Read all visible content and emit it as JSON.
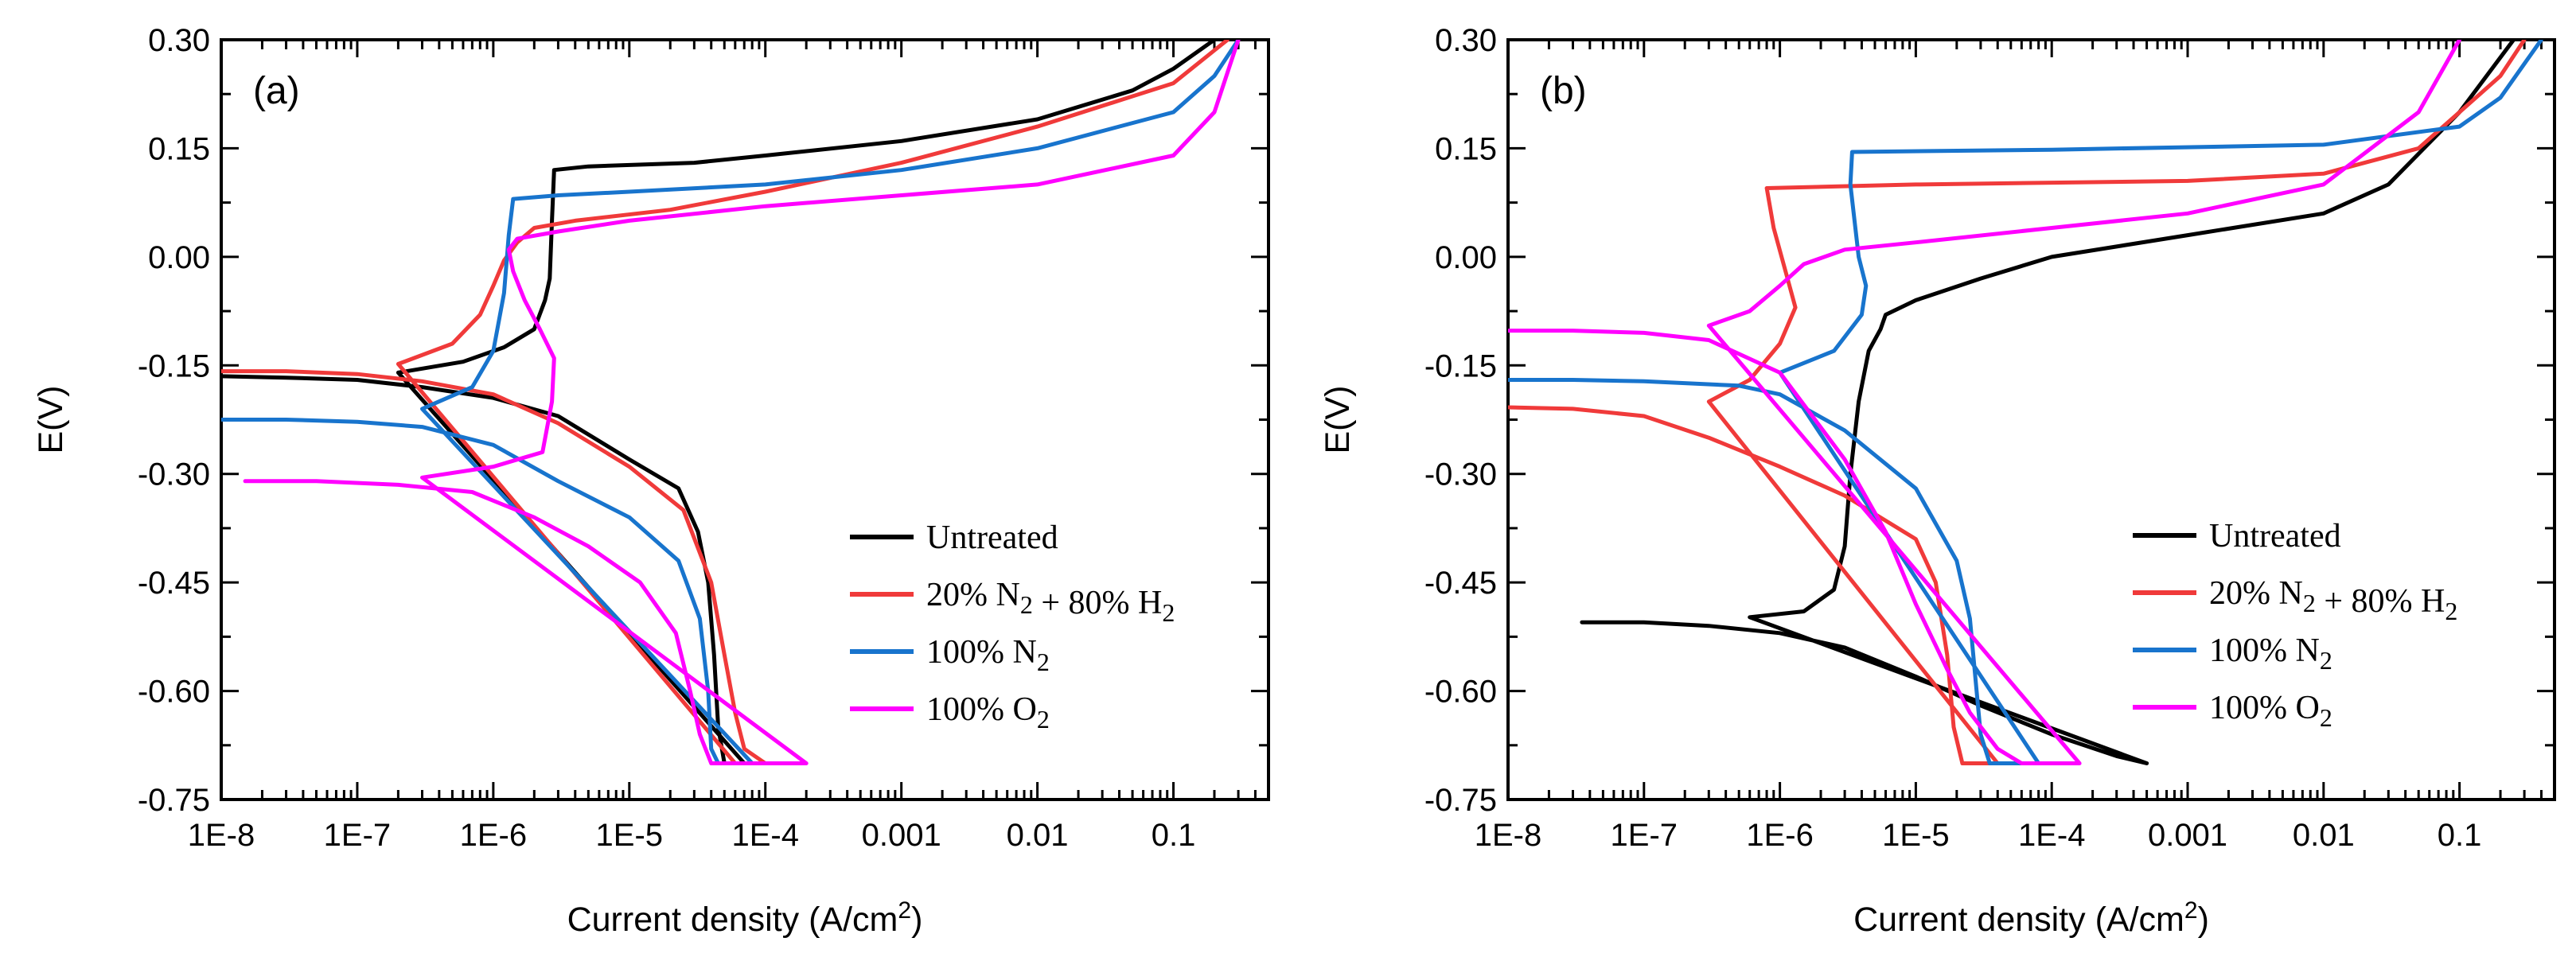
{
  "chart_data": [
    {
      "type": "line",
      "panel_label": "(a)",
      "xlabel": "Current density (A/cm",
      "xlabel_sup": "2",
      "xlabel_close": ")",
      "ylabel": "E(V)",
      "xscale": "log",
      "xlim": [
        1e-08,
        0.5
      ],
      "ylim": [
        -0.75,
        0.3
      ],
      "x_ticks": [
        1e-08,
        1e-07,
        1e-06,
        1e-05,
        0.0001,
        0.001,
        0.01,
        0.1
      ],
      "x_tick_labels": [
        "1E-8",
        "1E-7",
        "1E-6",
        "1E-5",
        "1E-4",
        "0.001",
        "0.01",
        "0.1"
      ],
      "y_ticks": [
        -0.75,
        -0.6,
        -0.45,
        -0.3,
        -0.15,
        0.0,
        0.15,
        0.3
      ],
      "y_tick_labels": [
        "-0.75",
        "-0.60",
        "-0.45",
        "-0.30",
        "-0.15",
        "0.00",
        "0.15",
        "0.30"
      ],
      "legend_position": "lower-right",
      "series": [
        {
          "name": "Untreated",
          "legend_parts": [
            [
              "Untreated",
              ""
            ]
          ],
          "color": "#000000",
          "points": [
            [
              1e-08,
              -0.165
            ],
            [
              3e-08,
              -0.167
            ],
            [
              1e-07,
              -0.17
            ],
            [
              3e-07,
              -0.18
            ],
            [
              1e-06,
              -0.195
            ],
            [
              3e-06,
              -0.22
            ],
            [
              1e-05,
              -0.28
            ],
            [
              2.3e-05,
              -0.32
            ],
            [
              3.2e-05,
              -0.38
            ],
            [
              3.8e-05,
              -0.45
            ],
            [
              4.2e-05,
              -0.55
            ],
            [
              4.5e-05,
              -0.65
            ],
            [
              5e-05,
              -0.7
            ],
            [
              7e-05,
              -0.7
            ],
            [
              2e-07,
              -0.16
            ],
            [
              6e-07,
              -0.145
            ],
            [
              1.2e-06,
              -0.125
            ],
            [
              2e-06,
              -0.1
            ],
            [
              2.4e-06,
              -0.06
            ],
            [
              2.6e-06,
              -0.03
            ],
            [
              2.7e-06,
              0.05
            ],
            [
              2.8e-06,
              0.12
            ],
            [
              5e-06,
              0.125
            ],
            [
              3e-05,
              0.13
            ],
            [
              0.0001,
              0.14
            ],
            [
              0.001,
              0.16
            ],
            [
              0.01,
              0.19
            ],
            [
              0.05,
              0.23
            ],
            [
              0.1,
              0.26
            ],
            [
              0.2,
              0.3
            ]
          ]
        },
        {
          "name": "20% N2 + 80% H2",
          "legend_parts": [
            [
              "20% N",
              "2"
            ],
            [
              " + 80% H",
              "2"
            ]
          ],
          "color": "#f03a3a",
          "points": [
            [
              1e-08,
              -0.158
            ],
            [
              3e-08,
              -0.158
            ],
            [
              1e-07,
              -0.162
            ],
            [
              3e-07,
              -0.172
            ],
            [
              1e-06,
              -0.19
            ],
            [
              3e-06,
              -0.23
            ],
            [
              1e-05,
              -0.29
            ],
            [
              2.5e-05,
              -0.35
            ],
            [
              4e-05,
              -0.45
            ],
            [
              5e-05,
              -0.55
            ],
            [
              6e-05,
              -0.63
            ],
            [
              7e-05,
              -0.68
            ],
            [
              0.0001,
              -0.7
            ],
            [
              6e-05,
              -0.7
            ],
            [
              2e-07,
              -0.148
            ],
            [
              5e-07,
              -0.12
            ],
            [
              8e-07,
              -0.08
            ],
            [
              1e-06,
              -0.04
            ],
            [
              1.2e-06,
              -0.005
            ],
            [
              1.5e-06,
              0.02
            ],
            [
              2e-06,
              0.04
            ],
            [
              4e-06,
              0.05
            ],
            [
              2e-05,
              0.065
            ],
            [
              0.0001,
              0.09
            ],
            [
              0.001,
              0.13
            ],
            [
              0.01,
              0.18
            ],
            [
              0.1,
              0.24
            ],
            [
              0.25,
              0.3
            ]
          ]
        },
        {
          "name": "100% N2",
          "legend_parts": [
            [
              "100% N",
              "2"
            ]
          ],
          "color": "#1874cd",
          "points": [
            [
              1e-08,
              -0.225
            ],
            [
              3e-08,
              -0.225
            ],
            [
              1e-07,
              -0.228
            ],
            [
              3e-07,
              -0.235
            ],
            [
              1e-06,
              -0.26
            ],
            [
              3e-06,
              -0.31
            ],
            [
              1e-05,
              -0.36
            ],
            [
              2.3e-05,
              -0.42
            ],
            [
              3.3e-05,
              -0.5
            ],
            [
              3.8e-05,
              -0.6
            ],
            [
              4e-05,
              -0.68
            ],
            [
              4.5e-05,
              -0.7
            ],
            [
              8e-05,
              -0.7
            ],
            [
              3e-07,
              -0.21
            ],
            [
              7e-07,
              -0.18
            ],
            [
              1e-06,
              -0.13
            ],
            [
              1.2e-06,
              -0.05
            ],
            [
              1.3e-06,
              0.03
            ],
            [
              1.4e-06,
              0.08
            ],
            [
              3e-06,
              0.085
            ],
            [
              1e-05,
              0.09
            ],
            [
              0.0001,
              0.1
            ],
            [
              0.001,
              0.12
            ],
            [
              0.01,
              0.15
            ],
            [
              0.1,
              0.2
            ],
            [
              0.2,
              0.25
            ],
            [
              0.3,
              0.3
            ]
          ]
        },
        {
          "name": "100% O2",
          "legend_parts": [
            [
              "100% O",
              "2"
            ]
          ],
          "color": "#ff00ff",
          "points": [
            [
              1.5e-08,
              -0.31
            ],
            [
              5e-08,
              -0.31
            ],
            [
              2e-07,
              -0.315
            ],
            [
              7e-07,
              -0.325
            ],
            [
              2e-06,
              -0.36
            ],
            [
              5e-06,
              -0.4
            ],
            [
              1.2e-05,
              -0.45
            ],
            [
              2.2e-05,
              -0.52
            ],
            [
              2.8e-05,
              -0.6
            ],
            [
              3.3e-05,
              -0.66
            ],
            [
              4e-05,
              -0.7
            ],
            [
              0.0002,
              -0.7
            ],
            [
              3e-07,
              -0.305
            ],
            [
              1e-06,
              -0.29
            ],
            [
              2.3e-06,
              -0.27
            ],
            [
              2.7e-06,
              -0.2
            ],
            [
              2.8e-06,
              -0.14
            ],
            [
              2.2e-06,
              -0.1
            ],
            [
              1.7e-06,
              -0.06
            ],
            [
              1.4e-06,
              -0.02
            ],
            [
              1.3e-06,
              0.01
            ],
            [
              1.5e-06,
              0.025
            ],
            [
              3e-06,
              0.035
            ],
            [
              1e-05,
              0.05
            ],
            [
              0.0001,
              0.07
            ],
            [
              0.001,
              0.085
            ],
            [
              0.01,
              0.1
            ],
            [
              0.1,
              0.14
            ],
            [
              0.2,
              0.2
            ],
            [
              0.3,
              0.3
            ]
          ]
        }
      ]
    },
    {
      "type": "line",
      "panel_label": "(b)",
      "xlabel": "Current density (A/cm",
      "xlabel_sup": "2",
      "xlabel_close": ")",
      "ylabel": "E(V)",
      "xscale": "log",
      "xlim": [
        1e-08,
        0.5
      ],
      "ylim": [
        -0.75,
        0.3
      ],
      "x_ticks": [
        1e-08,
        1e-07,
        1e-06,
        1e-05,
        0.0001,
        0.001,
        0.01,
        0.1
      ],
      "x_tick_labels": [
        "1E-8",
        "1E-7",
        "1E-6",
        "1E-5",
        "1E-4",
        "0.001",
        "0.01",
        "0.1"
      ],
      "y_ticks": [
        -0.75,
        -0.6,
        -0.45,
        -0.3,
        -0.15,
        0.0,
        0.15,
        0.3
      ],
      "y_tick_labels": [
        "-0.75",
        "-0.60",
        "-0.45",
        "-0.30",
        "-0.15",
        "0.00",
        "0.15",
        "0.30"
      ],
      "legend_position": "lower-right",
      "series": [
        {
          "name": "Untreated",
          "legend_parts": [
            [
              "Untreated",
              ""
            ]
          ],
          "color": "#000000",
          "points": [
            [
              3.5e-08,
              -0.505
            ],
            [
              1e-07,
              -0.505
            ],
            [
              3e-07,
              -0.51
            ],
            [
              1e-06,
              -0.52
            ],
            [
              3e-06,
              -0.54
            ],
            [
              1e-05,
              -0.58
            ],
            [
              3e-05,
              -0.62
            ],
            [
              0.0001,
              -0.66
            ],
            [
              0.0003,
              -0.69
            ],
            [
              0.0005,
              -0.7
            ],
            [
              6e-07,
              -0.498
            ],
            [
              1.5e-06,
              -0.49
            ],
            [
              2.5e-06,
              -0.46
            ],
            [
              3e-06,
              -0.4
            ],
            [
              3.3e-06,
              -0.3
            ],
            [
              3.8e-06,
              -0.2
            ],
            [
              4.5e-06,
              -0.13
            ],
            [
              5.5e-06,
              -0.1
            ],
            [
              6e-06,
              -0.08
            ],
            [
              1e-05,
              -0.06
            ],
            [
              3e-05,
              -0.03
            ],
            [
              0.0001,
              0.0
            ],
            [
              0.001,
              0.03
            ],
            [
              0.01,
              0.06
            ],
            [
              0.03,
              0.1
            ],
            [
              0.1,
              0.2
            ],
            [
              0.25,
              0.3
            ]
          ]
        },
        {
          "name": "20% N2 + 80% H2",
          "legend_parts": [
            [
              "20% N",
              "2"
            ],
            [
              " + 80% H",
              "2"
            ]
          ],
          "color": "#f03a3a",
          "points": [
            [
              1e-08,
              -0.208
            ],
            [
              3e-08,
              -0.21
            ],
            [
              1e-07,
              -0.22
            ],
            [
              3e-07,
              -0.25
            ],
            [
              1e-06,
              -0.29
            ],
            [
              3e-06,
              -0.33
            ],
            [
              1e-05,
              -0.39
            ],
            [
              1.4e-05,
              -0.45
            ],
            [
              1.7e-05,
              -0.55
            ],
            [
              1.9e-05,
              -0.65
            ],
            [
              2.2e-05,
              -0.7
            ],
            [
              4e-05,
              -0.7
            ],
            [
              3e-07,
              -0.2
            ],
            [
              6e-07,
              -0.17
            ],
            [
              1e-06,
              -0.12
            ],
            [
              1.3e-06,
              -0.07
            ],
            [
              1.1e-06,
              -0.02
            ],
            [
              9e-07,
              0.04
            ],
            [
              8e-07,
              0.095
            ],
            [
              1e-05,
              0.1
            ],
            [
              0.001,
              0.105
            ],
            [
              0.01,
              0.115
            ],
            [
              0.05,
              0.15
            ],
            [
              0.1,
              0.2
            ],
            [
              0.2,
              0.25
            ],
            [
              0.3,
              0.3
            ]
          ]
        },
        {
          "name": "100% N2",
          "legend_parts": [
            [
              "100% N",
              "2"
            ]
          ],
          "color": "#1874cd",
          "points": [
            [
              1e-08,
              -0.17
            ],
            [
              3e-08,
              -0.17
            ],
            [
              1e-07,
              -0.172
            ],
            [
              5e-07,
              -0.178
            ],
            [
              1e-06,
              -0.19
            ],
            [
              3e-06,
              -0.24
            ],
            [
              1e-05,
              -0.32
            ],
            [
              2e-05,
              -0.42
            ],
            [
              2.5e-05,
              -0.5
            ],
            [
              2.8e-05,
              -0.6
            ],
            [
              3e-05,
              -0.66
            ],
            [
              3.5e-05,
              -0.7
            ],
            [
              8e-05,
              -0.7
            ],
            [
              1e-06,
              -0.16
            ],
            [
              2.5e-06,
              -0.13
            ],
            [
              4e-06,
              -0.08
            ],
            [
              4.3e-06,
              -0.04
            ],
            [
              3.8e-06,
              0.0
            ],
            [
              3.3e-06,
              0.1
            ],
            [
              3.4e-06,
              0.145
            ],
            [
              0.0001,
              0.148
            ],
            [
              0.01,
              0.155
            ],
            [
              0.1,
              0.18
            ],
            [
              0.2,
              0.22
            ],
            [
              0.4,
              0.3
            ]
          ]
        },
        {
          "name": "100% O2",
          "legend_parts": [
            [
              "100% O",
              "2"
            ]
          ],
          "color": "#ff00ff",
          "points": [
            [
              1e-08,
              -0.102
            ],
            [
              3e-08,
              -0.102
            ],
            [
              1e-07,
              -0.105
            ],
            [
              3e-07,
              -0.115
            ],
            [
              1e-06,
              -0.16
            ],
            [
              3e-06,
              -0.28
            ],
            [
              6e-06,
              -0.38
            ],
            [
              1e-05,
              -0.48
            ],
            [
              1.7e-05,
              -0.57
            ],
            [
              2.5e-05,
              -0.63
            ],
            [
              4e-05,
              -0.68
            ],
            [
              6e-05,
              -0.7
            ],
            [
              0.00016,
              -0.7
            ],
            [
              3e-07,
              -0.095
            ],
            [
              6e-07,
              -0.075
            ],
            [
              1e-06,
              -0.04
            ],
            [
              1.5e-06,
              -0.01
            ],
            [
              3e-06,
              0.01
            ],
            [
              1e-05,
              0.02
            ],
            [
              0.0001,
              0.04
            ],
            [
              0.001,
              0.06
            ],
            [
              0.01,
              0.1
            ],
            [
              0.05,
              0.2
            ],
            [
              0.1,
              0.3
            ]
          ]
        }
      ]
    }
  ]
}
